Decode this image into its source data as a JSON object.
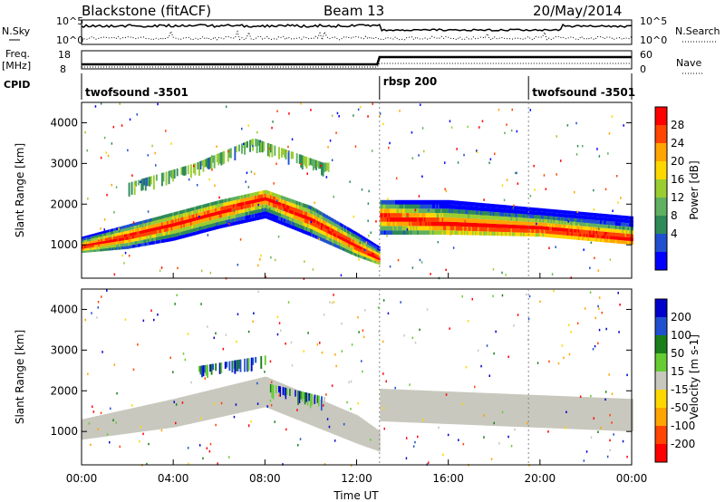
{
  "header": {
    "station": "Blackstone (fitACF)",
    "beam": "Beam 13",
    "date": "20/May/2014"
  },
  "top_panels": {
    "left_labels": {
      "nsky": "N.Sky",
      "freq": "Freq.",
      "mhz": "[MHz]",
      "cpid": "CPID"
    },
    "right_labels": {
      "nsearch": "N.Search",
      "nave": "Nave"
    },
    "noise_ticks_left": [
      "10^5",
      "10^0"
    ],
    "noise_ticks_right": [
      "10^5",
      "10^0"
    ],
    "freq_ticks": [
      "18",
      "8"
    ],
    "nave_ticks": [
      "60",
      "0"
    ]
  },
  "programs": [
    {
      "name": "twofsound -3501",
      "start_h": 0.0,
      "end_h": 13.0
    },
    {
      "name": "rbsp 200",
      "start_h": 13.0,
      "end_h": 19.5
    },
    {
      "name": "twofsound -3501",
      "start_h": 19.5,
      "end_h": 24.0
    }
  ],
  "chart_data": [
    {
      "type": "heatmap",
      "panel": "power",
      "ylabel": "Slant Range [km]",
      "xlabel": "",
      "x_ticks": [
        "00:00",
        "04:00",
        "08:00",
        "12:00",
        "16:00",
        "20:00",
        "00:00"
      ],
      "xlim_hours": [
        0,
        24
      ],
      "y_ticks": [
        1000,
        2000,
        3000,
        4000
      ],
      "ylim": [
        180,
        4500
      ],
      "colorbar": {
        "label": "Power [dB]",
        "tick_labels": [
          "28",
          "24",
          "20",
          "16",
          "12",
          "8",
          "4"
        ],
        "range": [
          0,
          30
        ],
        "colors": [
          "#0000ff",
          "#2050d0",
          "#2e8b57",
          "#5fb060",
          "#9acd32",
          "#ffd700",
          "#ffa500",
          "#ff4500",
          "#ff0000"
        ]
      },
      "echo_band_km": [
        {
          "t": 0,
          "lower": 800,
          "center": 950,
          "upper": 1200
        },
        {
          "t": 2,
          "lower": 900,
          "center": 1200,
          "upper": 1500
        },
        {
          "t": 4,
          "lower": 1100,
          "center": 1500,
          "upper": 1800
        },
        {
          "t": 6,
          "lower": 1400,
          "center": 1800,
          "upper": 2100
        },
        {
          "t": 8,
          "lower": 1650,
          "center": 2150,
          "upper": 2350
        },
        {
          "t": 10,
          "lower": 1200,
          "center": 1600,
          "upper": 1950
        },
        {
          "t": 12,
          "lower": 700,
          "center": 950,
          "upper": 1300
        },
        {
          "t": 13,
          "lower": 500,
          "center": 650,
          "upper": 950
        },
        {
          "t": 13.01,
          "lower": 1250,
          "center": 1700,
          "upper": 2100
        },
        {
          "t": 16,
          "lower": 1250,
          "center": 1500,
          "upper": 2100
        },
        {
          "t": 20,
          "lower": 1200,
          "center": 1400,
          "upper": 1900
        },
        {
          "t": 24,
          "lower": 1000,
          "center": 1150,
          "upper": 1700
        }
      ],
      "upper_arc_km": [
        {
          "t": 2,
          "range": 2400
        },
        {
          "t": 5,
          "range": 2900
        },
        {
          "t": 7.5,
          "range": 3500
        },
        {
          "t": 10.5,
          "range": 2900
        }
      ]
    },
    {
      "type": "heatmap",
      "panel": "velocity",
      "ylabel": "Slant Range [km]",
      "xlabel": "Time UT",
      "x_ticks": [
        "00:00",
        "04:00",
        "08:00",
        "12:00",
        "16:00",
        "20:00",
        "00:00"
      ],
      "xlim_hours": [
        0,
        24
      ],
      "y_ticks": [
        1000,
        2000,
        3000,
        4000
      ],
      "ylim": [
        180,
        4500
      ],
      "colorbar": {
        "label": "Velocity [m s-1]",
        "tick_labels": [
          "200",
          "100",
          "50",
          "15",
          "-15",
          "-50",
          "-100",
          "-200"
        ],
        "range": [
          -250,
          250
        ],
        "colors": [
          "#ff0000",
          "#ff4500",
          "#ffa500",
          "#ffd700",
          "#c8c8be",
          "#66cc33",
          "#1a7f1a",
          "#2050d0",
          "#0000cc"
        ]
      },
      "gray_band_km": [
        {
          "t": 0,
          "lower": 800,
          "upper": 1300
        },
        {
          "t": 4,
          "lower": 1100,
          "upper": 1800
        },
        {
          "t": 8,
          "lower": 1600,
          "upper": 2350
        },
        {
          "t": 12,
          "lower": 700,
          "upper": 1400
        },
        {
          "t": 13,
          "lower": 500,
          "upper": 1000
        },
        {
          "t": 13.01,
          "lower": 1250,
          "upper": 2050
        },
        {
          "t": 24,
          "lower": 1000,
          "upper": 1800
        }
      ]
    }
  ]
}
